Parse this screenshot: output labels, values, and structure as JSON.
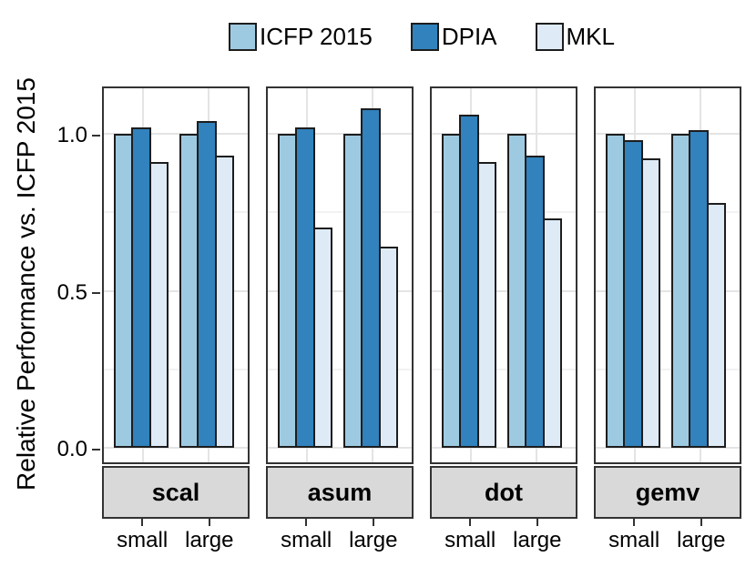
{
  "chart_data": {
    "type": "bar",
    "title": "",
    "ylabel": "Relative Performance vs. ICFP 2015",
    "xlabel": "",
    "ylim": [
      -0.045,
      1.155
    ],
    "yticks": [
      0.0,
      0.5,
      1.0
    ],
    "ytick_labels": [
      "0.0",
      "0.5",
      "1.0"
    ],
    "minor_yticks": [
      0.25,
      0.75
    ],
    "grid": true,
    "legend_position": "top",
    "categories": [
      "small",
      "large"
    ],
    "series_names": [
      "ICFP 2015",
      "DPIA",
      "MKL"
    ],
    "legend": [
      {
        "label": "ICFP 2015",
        "color": "#9ECAE1"
      },
      {
        "label": "DPIA",
        "color": "#3182BD"
      },
      {
        "label": "MKL",
        "color": "#DEEBF7"
      }
    ],
    "facets": [
      {
        "label": "scal",
        "groups": [
          {
            "category": "small",
            "values": [
              1.0,
              1.02,
              0.91
            ]
          },
          {
            "category": "large",
            "values": [
              1.0,
              1.04,
              0.93
            ]
          }
        ]
      },
      {
        "label": "asum",
        "groups": [
          {
            "category": "small",
            "values": [
              1.0,
              1.02,
              0.7
            ]
          },
          {
            "category": "large",
            "values": [
              1.0,
              1.08,
              0.64
            ]
          }
        ]
      },
      {
        "label": "dot",
        "groups": [
          {
            "category": "small",
            "values": [
              1.0,
              1.06,
              0.91
            ]
          },
          {
            "category": "large",
            "values": [
              1.0,
              0.93,
              0.73
            ]
          }
        ]
      },
      {
        "label": "gemv",
        "groups": [
          {
            "category": "small",
            "values": [
              1.0,
              0.98,
              0.92
            ]
          },
          {
            "category": "large",
            "values": [
              1.0,
              1.01,
              0.78
            ]
          }
        ]
      }
    ],
    "colors": {
      "panel_border": "#333333",
      "strip_background": "#d9d9d9",
      "bar_outline": "#1d1d1d",
      "grid_major": "#e4e4e4",
      "grid_minor": "#f2f2f2"
    }
  }
}
